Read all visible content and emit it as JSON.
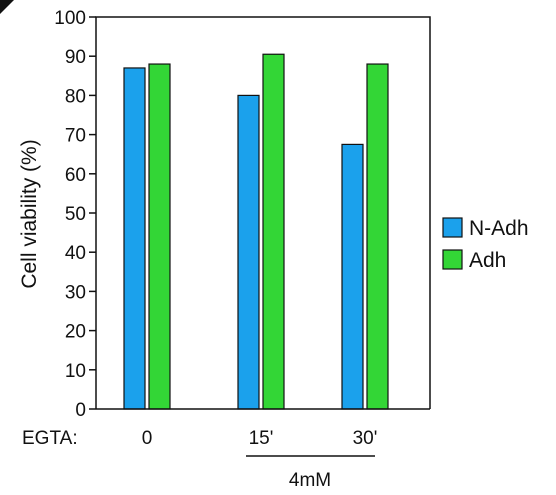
{
  "chart_data": {
    "type": "bar",
    "ylabel": "Cell viability (%)",
    "ylim": [
      0,
      100
    ],
    "yticks": [
      0,
      10,
      20,
      30,
      40,
      50,
      60,
      70,
      80,
      90,
      100
    ],
    "row_label": "EGTA:",
    "categories": [
      "0",
      "15'",
      "30'"
    ],
    "group_label": "4mM",
    "grid": false,
    "legend_position": "right",
    "series": [
      {
        "name": "N-Adh",
        "color": "#1ba1ec",
        "values": [
          87,
          80,
          67.5
        ]
      },
      {
        "name": "Adh",
        "color": "#33d636",
        "values": [
          88,
          90.5,
          88
        ]
      }
    ]
  }
}
